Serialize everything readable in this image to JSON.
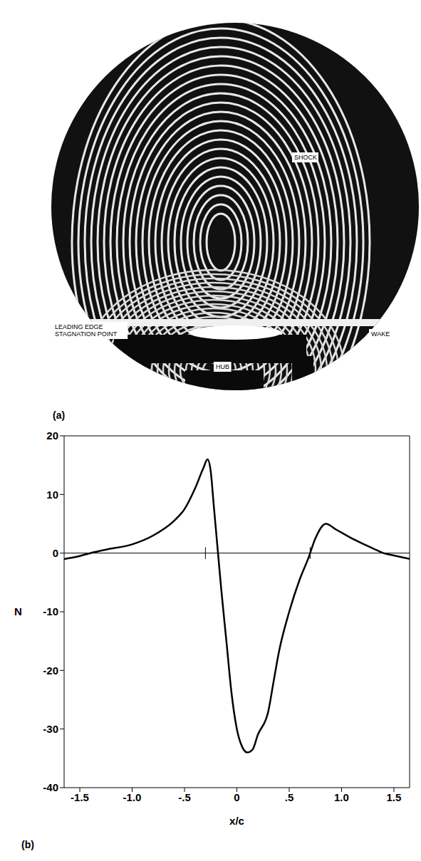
{
  "photo": {
    "label": "(a)",
    "annotations": {
      "shock": "SHOCK",
      "leading_edge": "LEADING EDGE",
      "stagnation_point": "STAGNATION POINT",
      "wake": "WAKE",
      "hub": "HUB"
    }
  },
  "chart_data": {
    "type": "line",
    "panel_label": "(b)",
    "x_label": "x/c",
    "y_label": "N",
    "x": [
      -1.65,
      -1.5,
      -1.4,
      -1.25,
      -1.0,
      -0.8,
      -0.6,
      -0.5,
      -0.4,
      -0.32,
      -0.28,
      -0.25,
      -0.22,
      -0.18,
      -0.15,
      -0.1,
      -0.05,
      0,
      0.05,
      0.1,
      0.15,
      0.2,
      0.3,
      0.35,
      0.4,
      0.5,
      0.6,
      0.68,
      0.75,
      0.85,
      0.95,
      1.1,
      1.3,
      1.4,
      1.5,
      1.65
    ],
    "series": [
      {
        "name": "N",
        "color": "#000000",
        "values": [
          -1,
          -0.5,
          0,
          0.6,
          1.5,
          3,
          5.5,
          7.5,
          11,
          14.5,
          16,
          14,
          8,
          0,
          -6,
          -15,
          -24,
          -30,
          -33,
          -34,
          -33.5,
          -31,
          -27,
          -22,
          -17,
          -10,
          -4.5,
          -1,
          2.5,
          5,
          4,
          2.5,
          0.8,
          0,
          -0.4,
          -1
        ]
      }
    ],
    "blade_edges": [
      -0.3,
      0.7
    ],
    "xlim": [
      -1.65,
      1.65
    ],
    "xticks": [
      -1.5,
      {
        "value": -1,
        "label": "-1.0"
      },
      {
        "value": -0.5,
        "label": "-.5"
      },
      0,
      {
        "value": 0.5,
        "label": ".5"
      },
      {
        "value": 1,
        "label": "1.0"
      },
      1.5
    ],
    "ylim": [
      -40,
      20
    ],
    "yticks": [
      -40,
      -30,
      -20,
      -10,
      0,
      10,
      20
    ],
    "grid": false
  }
}
